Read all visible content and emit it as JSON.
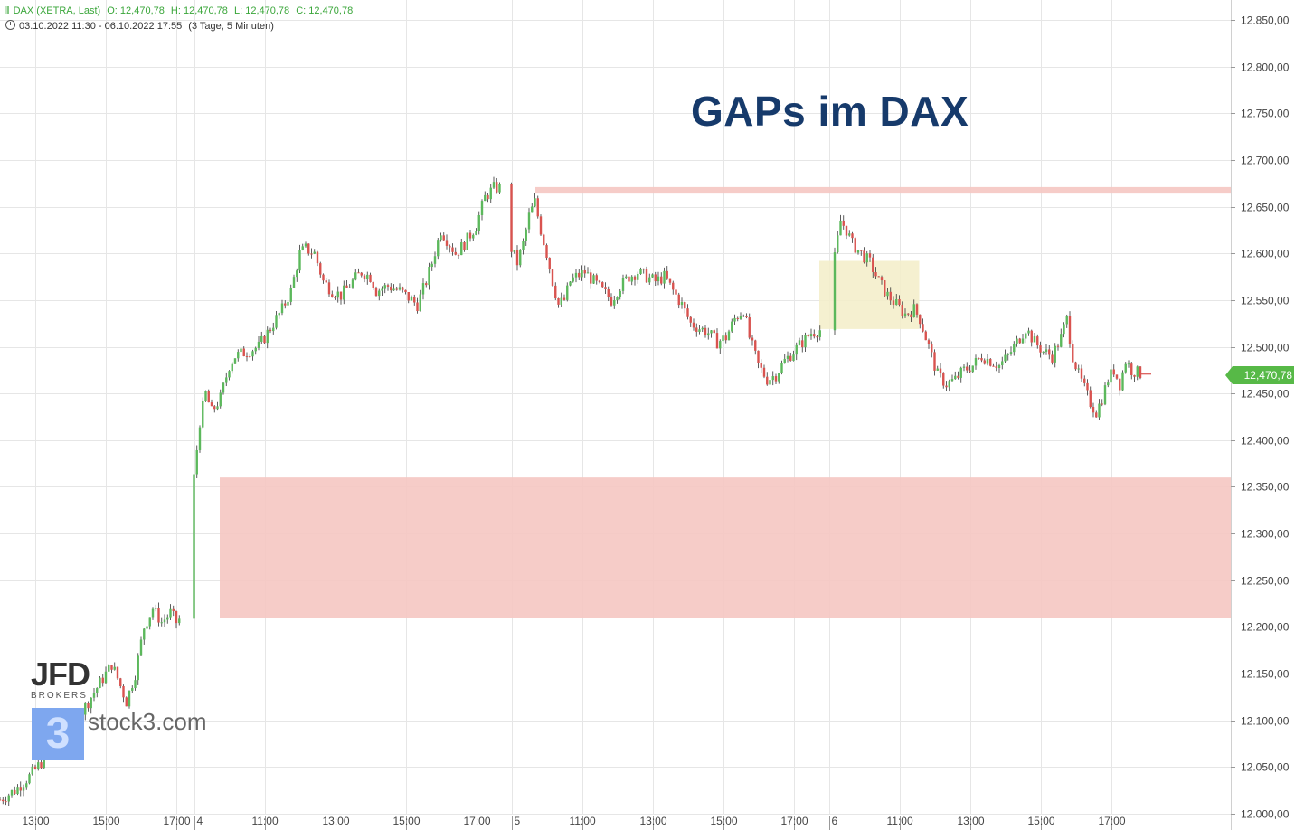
{
  "header": {
    "symbol_line": "DAX (XETRA, Last)",
    "open": "O: 12,470,78",
    "high": "H: 12,470,78",
    "low": "L: 12,470,78",
    "close": "C: 12,470,78",
    "date_range": "03.10.2022 11:30 - 06.10.2022 17:55",
    "span": "(3 Tage, 5 Minuten)"
  },
  "title": "GAPs im DAX",
  "last_price_label": "12,470,78",
  "logos": {
    "jfd": "JFD",
    "jfd_sub": "BROKERS",
    "stock3_mark": "3",
    "stock3_text": "stock3.com"
  },
  "colors": {
    "up": "#5cb85c",
    "down": "#d9534f",
    "gap_zone": "#f5c6c2",
    "consolidation_zone": "#f3edc8",
    "title": "#163a6b",
    "grid": "#e6e6e6"
  },
  "chart_data": {
    "type": "candlestick",
    "y_axis": {
      "min": 12000,
      "max": 12850,
      "ticks": [
        "12.000,00",
        "12.050,00",
        "12.100,00",
        "12.150,00",
        "12.200,00",
        "12.250,00",
        "12.300,00",
        "12.350,00",
        "12.400,00",
        "12.450,00",
        "12.500,00",
        "12.550,00",
        "12.600,00",
        "12.650,00",
        "12.700,00",
        "12.750,00",
        "12.800,00",
        "12.850,00"
      ],
      "tick_values": [
        12000,
        12050,
        12100,
        12150,
        12200,
        12250,
        12300,
        12350,
        12400,
        12450,
        12500,
        12550,
        12600,
        12650,
        12700,
        12750,
        12800,
        12850
      ]
    },
    "x_axis": {
      "labels": [
        "13:00",
        "15:00",
        "17:00",
        "4",
        "11:00",
        "13:00",
        "15:00",
        "17:00",
        "5",
        "11:00",
        "13:00",
        "15:00",
        "17:00",
        "6",
        "11:00",
        "13:00",
        "15:00",
        "17:00"
      ],
      "label_slots": [
        12,
        36,
        60,
        66,
        90,
        114,
        138,
        162,
        174,
        198,
        222,
        246,
        270,
        282,
        306,
        330,
        354,
        378
      ],
      "total_slots": 400
    },
    "zones": [
      {
        "label": "gap-lower",
        "low": 12210,
        "high": 12360,
        "start_slot": 60,
        "end_slot": 412
      },
      {
        "label": "gap-upper",
        "low": 12664,
        "high": 12671,
        "start_slot": 172,
        "end_slot": 412
      },
      {
        "label": "consolidation",
        "low": 12519,
        "high": 12592,
        "start_slot": 280,
        "end_slot": 314
      }
    ],
    "last_price": 12470.78,
    "close_path": [
      [
        0,
        12015
      ],
      [
        5,
        12025
      ],
      [
        10,
        12040
      ],
      [
        14,
        12055
      ],
      [
        18,
        12070
      ],
      [
        22,
        12090
      ],
      [
        26,
        12100
      ],
      [
        30,
        12120
      ],
      [
        34,
        12140
      ],
      [
        38,
        12160
      ],
      [
        40,
        12145
      ],
      [
        43,
        12120
      ],
      [
        46,
        12150
      ],
      [
        49,
        12200
      ],
      [
        52,
        12220
      ],
      [
        55,
        12205
      ],
      [
        58,
        12215
      ],
      [
        60,
        12205
      ],
      [
        61,
        12208
      ],
      [
        66,
        12360
      ],
      [
        68,
        12420
      ],
      [
        70,
        12450
      ],
      [
        72,
        12430
      ],
      [
        75,
        12445
      ],
      [
        78,
        12480
      ],
      [
        80,
        12490
      ],
      [
        84,
        12495
      ],
      [
        88,
        12500
      ],
      [
        92,
        12520
      ],
      [
        96,
        12540
      ],
      [
        99,
        12560
      ],
      [
        102,
        12600
      ],
      [
        104,
        12605
      ],
      [
        107,
        12600
      ],
      [
        110,
        12570
      ],
      [
        113,
        12560
      ],
      [
        116,
        12555
      ],
      [
        120,
        12570
      ],
      [
        123,
        12580
      ],
      [
        126,
        12575
      ],
      [
        128,
        12560
      ],
      [
        132,
        12565
      ],
      [
        136,
        12560
      ],
      [
        140,
        12550
      ],
      [
        142,
        12545
      ],
      [
        145,
        12570
      ],
      [
        147,
        12590
      ],
      [
        150,
        12625
      ],
      [
        152,
        12615
      ],
      [
        155,
        12600
      ],
      [
        158,
        12610
      ],
      [
        162,
        12630
      ],
      [
        165,
        12660
      ],
      [
        168,
        12670
      ],
      [
        170,
        12670
      ],
      [
        174,
        12605
      ],
      [
        176,
        12590
      ],
      [
        178,
        12610
      ],
      [
        180,
        12640
      ],
      [
        182,
        12655
      ],
      [
        184,
        12625
      ],
      [
        186,
        12600
      ],
      [
        188,
        12570
      ],
      [
        190,
        12545
      ],
      [
        192,
        12550
      ],
      [
        194,
        12570
      ],
      [
        196,
        12575
      ],
      [
        199,
        12580
      ],
      [
        202,
        12570
      ],
      [
        205,
        12560
      ],
      [
        208,
        12550
      ],
      [
        211,
        12565
      ],
      [
        214,
        12575
      ],
      [
        217,
        12580
      ],
      [
        220,
        12575
      ],
      [
        223,
        12570
      ],
      [
        226,
        12575
      ],
      [
        229,
        12560
      ],
      [
        232,
        12545
      ],
      [
        235,
        12525
      ],
      [
        238,
        12520
      ],
      [
        241,
        12515
      ],
      [
        244,
        12505
      ],
      [
        247,
        12510
      ],
      [
        250,
        12530
      ],
      [
        253,
        12540
      ],
      [
        255,
        12510
      ],
      [
        258,
        12480
      ],
      [
        261,
        12465
      ],
      [
        264,
        12470
      ],
      [
        267,
        12485
      ],
      [
        270,
        12495
      ],
      [
        273,
        12505
      ],
      [
        276,
        12515
      ],
      [
        279,
        12518
      ],
      [
        282,
        12520
      ],
      [
        284,
        12595
      ],
      [
        286,
        12635
      ],
      [
        288,
        12625
      ],
      [
        290,
        12610
      ],
      [
        293,
        12600
      ],
      [
        296,
        12590
      ],
      [
        299,
        12570
      ],
      [
        302,
        12555
      ],
      [
        305,
        12545
      ],
      [
        308,
        12535
      ],
      [
        311,
        12540
      ],
      [
        313,
        12530
      ],
      [
        316,
        12500
      ],
      [
        319,
        12470
      ],
      [
        322,
        12460
      ],
      [
        325,
        12465
      ],
      [
        328,
        12475
      ],
      [
        331,
        12480
      ],
      [
        334,
        12490
      ],
      [
        337,
        12485
      ],
      [
        340,
        12480
      ],
      [
        343,
        12490
      ],
      [
        346,
        12505
      ],
      [
        349,
        12520
      ],
      [
        352,
        12505
      ],
      [
        355,
        12495
      ],
      [
        358,
        12490
      ],
      [
        361,
        12510
      ],
      [
        363,
        12530
      ],
      [
        365,
        12490
      ],
      [
        367,
        12470
      ],
      [
        369,
        12455
      ],
      [
        371,
        12440
      ],
      [
        373,
        12430
      ],
      [
        375,
        12445
      ],
      [
        377,
        12465
      ],
      [
        379,
        12475
      ],
      [
        381,
        12460
      ],
      [
        383,
        12485
      ],
      [
        385,
        12475
      ],
      [
        388,
        12471
      ]
    ]
  }
}
